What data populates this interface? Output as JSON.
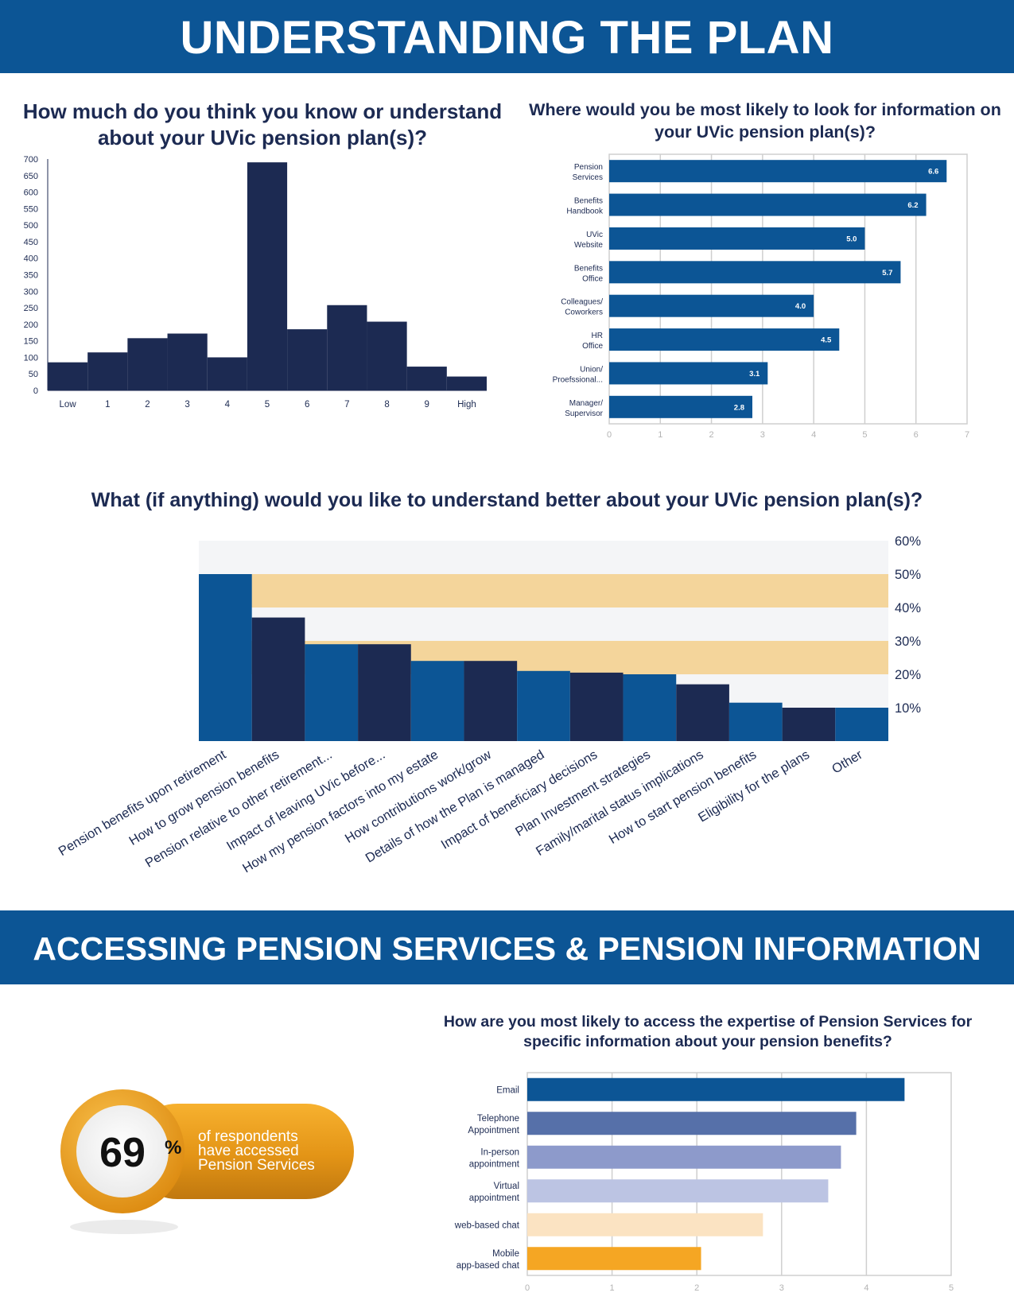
{
  "sections": {
    "understanding_title": "UNDERSTANDING THE PLAN",
    "accessing_title": "ACCESSING PENSION SERVICES & PENSION INFORMATION"
  },
  "stat": {
    "value": "69",
    "unit": "%",
    "caption_lines": [
      "of respondents",
      "have accessed",
      "Pension Services"
    ]
  },
  "colors": {
    "banner": "#0c5595",
    "navy": "#1c2a52",
    "blue": "#0c5595",
    "title_text": "#1c2a52",
    "band_light": "#f4f5f7",
    "band_orange": "#f4d59b",
    "badge_orange": "#f5a623"
  },
  "chart_data": [
    {
      "id": "knowledge",
      "type": "bar",
      "title": "How much do you think you know or understand about your UVic pension plan(s)?",
      "categories": [
        "Low",
        "1",
        "2",
        "3",
        "4",
        "5",
        "6",
        "7",
        "8",
        "9",
        "High"
      ],
      "values": [
        85,
        115,
        158,
        172,
        100,
        690,
        185,
        258,
        208,
        72,
        42
      ],
      "yticks": [
        0,
        50,
        100,
        150,
        200,
        250,
        300,
        350,
        400,
        450,
        500,
        550,
        600,
        650,
        700
      ],
      "ylim": [
        0,
        700
      ],
      "xlabel": "",
      "ylabel": "",
      "grid": false
    },
    {
      "id": "info_sources",
      "type": "bar",
      "orientation": "horizontal",
      "title": "Where would you be most likely to look for information on your UVic pension plan(s)?",
      "categories": [
        "Pension\nServices",
        "Benefits\nHandbook",
        "UVic\nWebsite",
        "Benefits\nOffice",
        "Colleagues/\nCoworkers",
        "HR\nOffice",
        "Union/\nProefssional...",
        "Manager/\nSupervisor"
      ],
      "values": [
        6.6,
        6.2,
        5.0,
        5.7,
        4.0,
        4.5,
        3.1,
        2.8
      ],
      "data_labels": [
        "6.6",
        "6.2",
        "5.0",
        "5.7",
        "4.0",
        "4.5",
        "3.1",
        "2.8"
      ],
      "xticks": [
        0,
        1,
        2,
        3,
        4,
        5,
        6,
        7
      ],
      "xlim": [
        0,
        7
      ],
      "grid": true
    },
    {
      "id": "understand_better",
      "type": "bar",
      "title": "What (if anything) would you like to understand better about your UVic pension plan(s)?",
      "categories": [
        "Pension benefits upon retirement",
        "How to grow pension benefits",
        "Pension relative to other retirement...",
        "Impact of leaving UVic before...",
        "How my pension factors into my estate",
        "How contributions work/grow",
        "Details of how the Plan is managed",
        "Impact of beneficiary decisions",
        "Plan Investment strategies",
        "Family/marital status implications",
        "How to start  pension benefits",
        "Eligibility for the plans",
        "Other"
      ],
      "values": [
        50,
        37,
        29,
        29,
        24,
        24,
        21,
        20.5,
        20,
        17,
        11.5,
        10,
        10
      ],
      "yticks": [
        "10%",
        "20%",
        "30%",
        "40%",
        "50%",
        "60%"
      ],
      "ylim": [
        0,
        60
      ],
      "y_axis_side": "right",
      "grid": false
    },
    {
      "id": "access_expertise",
      "type": "bar",
      "orientation": "horizontal",
      "title": "How are you most likely to access the expertise of Pension Services for specific information about your pension benefits?",
      "categories": [
        "Email",
        "Telephone\nAppointment",
        "In-person\nappointment",
        "Virtual\nappointment",
        "web-based chat",
        "Mobile\napp-based chat"
      ],
      "values": [
        4.45,
        3.88,
        3.7,
        3.55,
        2.78,
        2.05
      ],
      "bar_colors": [
        "#0c5595",
        "#5670a9",
        "#8d9acb",
        "#bcc4e3",
        "#fbe3c2",
        "#f5a623"
      ],
      "xticks": [
        0,
        1,
        2,
        3,
        4,
        5
      ],
      "xlim": [
        0,
        5
      ],
      "grid": true
    }
  ]
}
